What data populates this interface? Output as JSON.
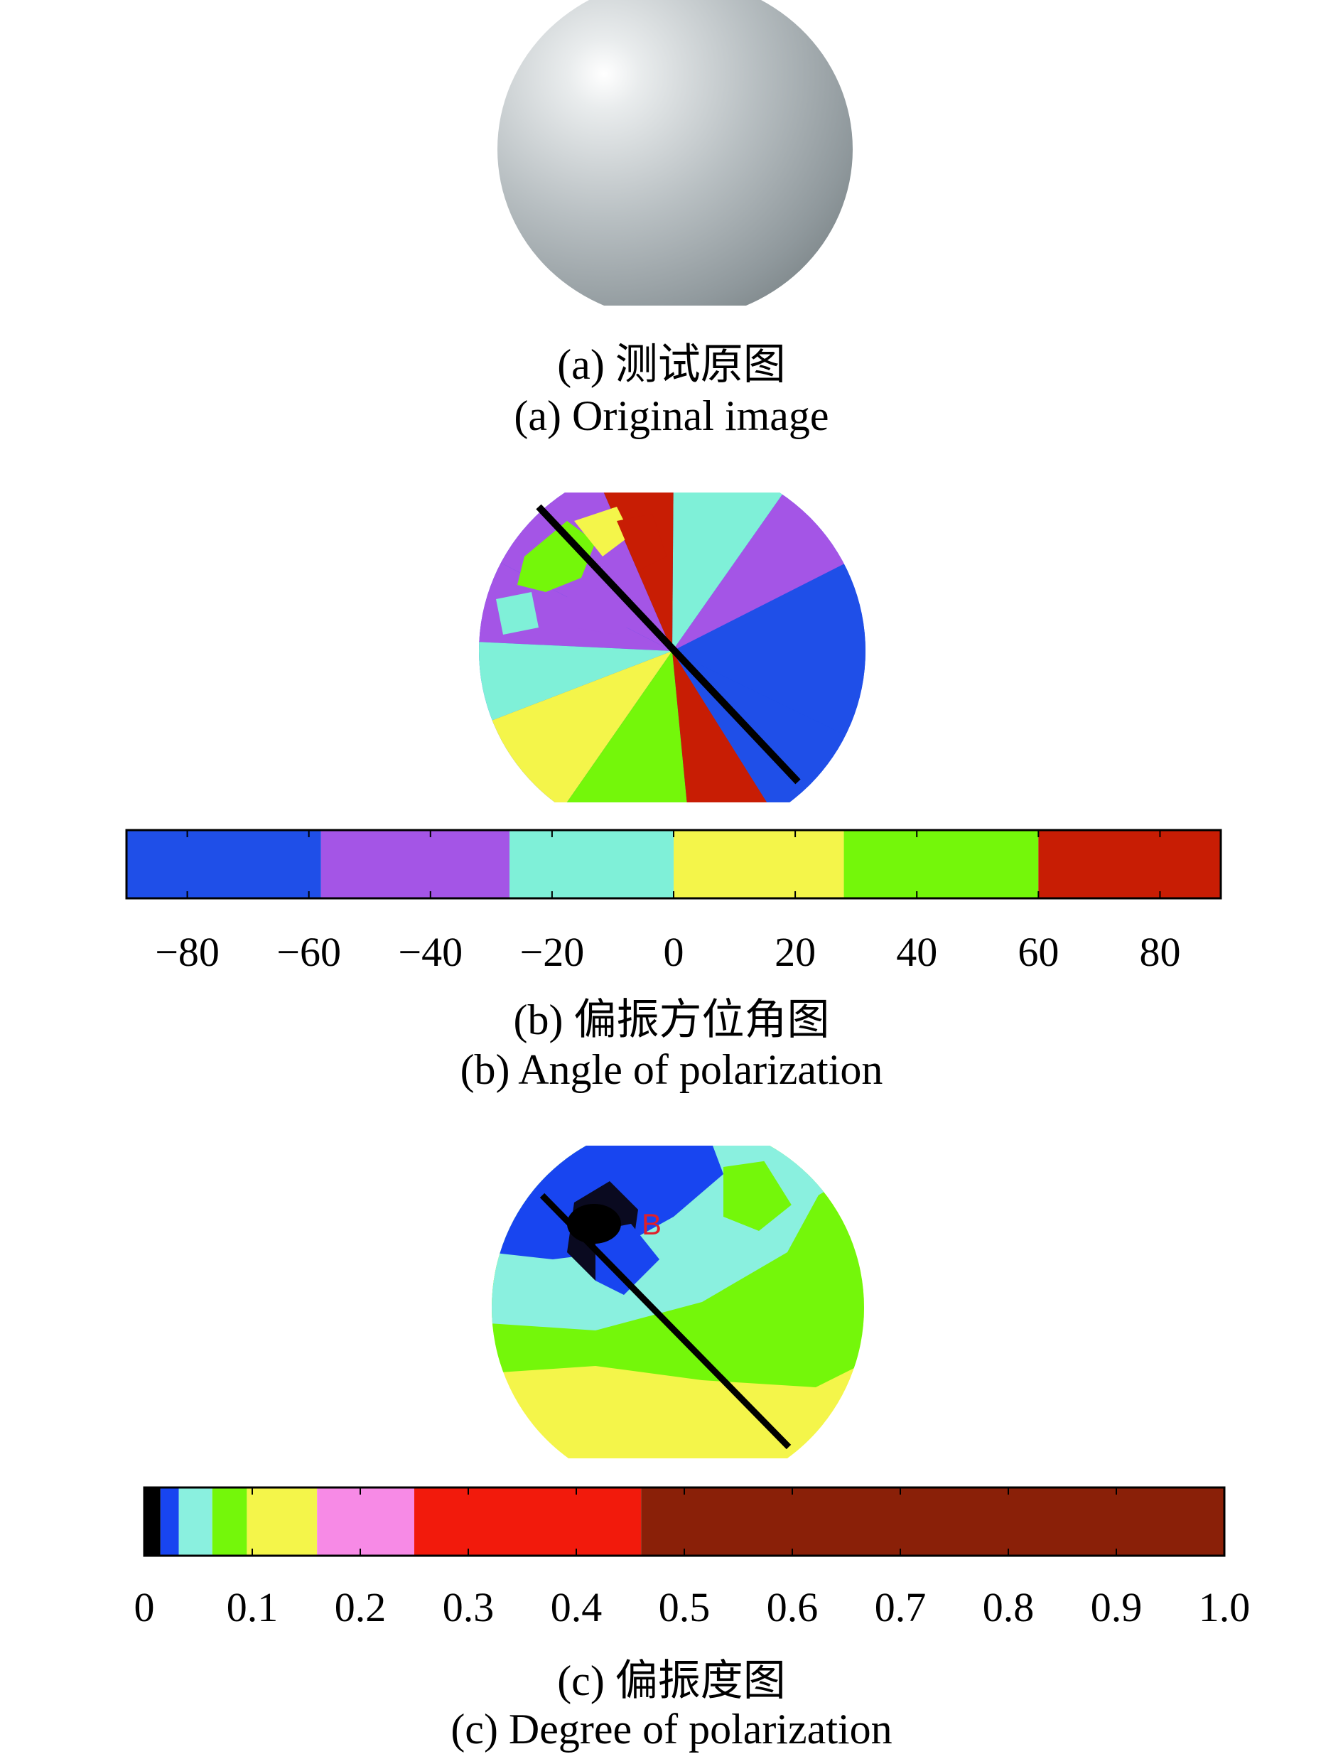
{
  "panels": [
    {
      "id": "a",
      "caption_cn": "(a) 测试原图",
      "caption_en": "(a) Original image"
    },
    {
      "id": "b",
      "caption_cn": "(b) 偏振方位角图",
      "caption_en": "(b) Angle of polarization",
      "colorbar": {
        "colors": [
          "#1f4fe8",
          "#a455e6",
          "#7ff0d8",
          "#f4f54a",
          "#74f70a",
          "#c81d04"
        ],
        "boundaries": [
          -90,
          -58,
          -27,
          0,
          28,
          60,
          90
        ],
        "tick_labels": [
          "−80",
          "−60",
          "−40",
          "−20",
          "0",
          "20",
          "40",
          "60",
          "80"
        ],
        "tick_values": [
          -80,
          -60,
          -40,
          -20,
          0,
          20,
          40,
          60,
          80
        ]
      }
    },
    {
      "id": "c",
      "caption_cn": "(c) 偏振度图",
      "caption_en": "(c) Degree of polarization",
      "annotation": "B",
      "colorbar": {
        "colors": [
          "#000000",
          "#1845f0",
          "#8af0df",
          "#74f70a",
          "#f4f54a",
          "#f78ae6",
          "#f21a0c",
          "#8a2008"
        ],
        "boundaries": [
          0,
          0.015,
          0.032,
          0.063,
          0.095,
          0.16,
          0.25,
          0.46,
          1.0
        ],
        "tick_labels": [
          "0",
          "0.1",
          "0.2",
          "0.3",
          "0.4",
          "0.5",
          "0.6",
          "0.7",
          "0.8",
          "0.9",
          "1.0"
        ],
        "tick_values": [
          0,
          0.1,
          0.2,
          0.3,
          0.4,
          0.5,
          0.6,
          0.7,
          0.8,
          0.9,
          1.0
        ]
      }
    }
  ]
}
